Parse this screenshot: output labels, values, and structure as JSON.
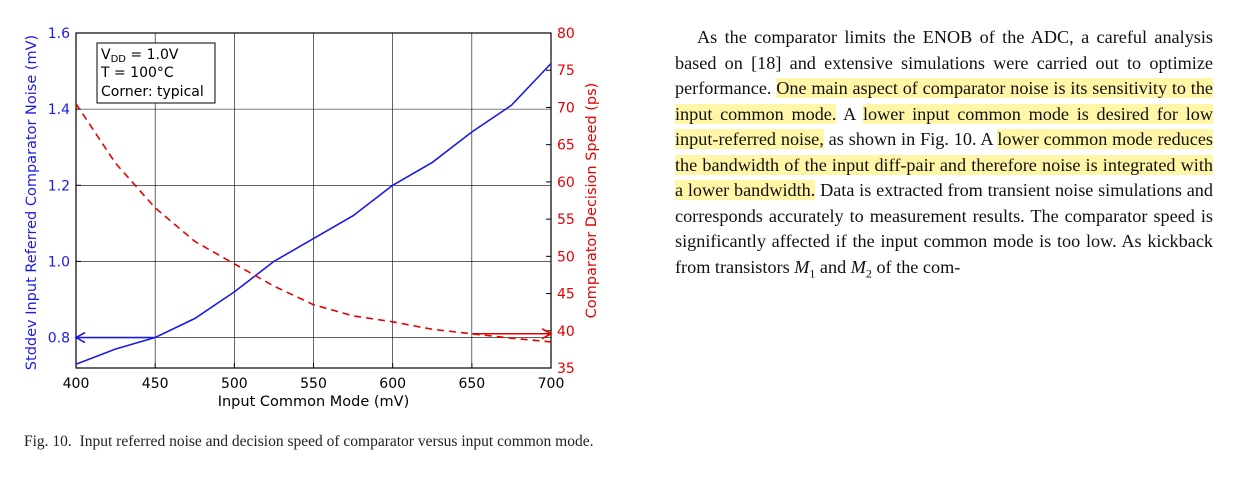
{
  "chart_data": {
    "type": "line",
    "xlabel": "Input Common Mode (mV)",
    "ylabel_left": "Stddev Input Referred Comparator Noise (mV)",
    "ylabel_right": "Comparator Decision Speed (ps)",
    "xlim": [
      400,
      700
    ],
    "ylim_left": [
      0.72,
      1.6
    ],
    "ylim_right": [
      35,
      80
    ],
    "x_ticks": [
      "400",
      "450",
      "500",
      "550",
      "600",
      "650",
      "700"
    ],
    "y_left_ticks": [
      "0.8",
      "1.0",
      "1.2",
      "1.4",
      "1.6"
    ],
    "y_right_ticks": [
      "35",
      "40",
      "45",
      "50",
      "55",
      "60",
      "65",
      "70",
      "75",
      "80"
    ],
    "grid": true,
    "annotation": {
      "line1_main": "V",
      "line1_sub": "DD",
      "line1_rest": " = 1.0V",
      "line2": "T = 100°C",
      "line3": "Corner: typical"
    },
    "series": [
      {
        "axis": "left",
        "color": "#1a1ae6",
        "style": "solid",
        "x": [
          400,
          425,
          450,
          475,
          500,
          525,
          550,
          575,
          600,
          625,
          650,
          675,
          700
        ],
        "y": [
          0.73,
          0.77,
          0.8,
          0.85,
          0.92,
          1.0,
          1.06,
          1.12,
          1.2,
          1.26,
          1.34,
          1.41,
          1.52
        ]
      },
      {
        "axis": "right",
        "color": "#e60000",
        "style": "dashed",
        "x": [
          400,
          425,
          450,
          475,
          500,
          525,
          550,
          575,
          600,
          625,
          650,
          675,
          700
        ],
        "y": [
          70.5,
          62.5,
          56.5,
          52.0,
          49.0,
          46.0,
          43.5,
          42.0,
          41.2,
          40.2,
          39.6,
          39.0,
          38.5
        ]
      }
    ],
    "arrows": [
      {
        "axis": "left",
        "direction": "left",
        "from_x": 450,
        "to_x": 400,
        "y": 0.8,
        "color": "#1a1ae6"
      },
      {
        "axis": "right",
        "direction": "right",
        "from_x": 650,
        "to_x": 700,
        "y": 39.6,
        "color": "#e60000"
      }
    ]
  },
  "caption": {
    "label": "Fig. 10.",
    "text": "Input referred noise and decision speed of comparator versus input common mode."
  },
  "body": {
    "s1": "As the comparator limits the ENOB of the ADC, a careful analysis based on [18] and extensive simulations were carried out to optimize performance. ",
    "h1": "One main aspect of comparator noise is its sensitivity to the input common mode.",
    "s2": " A ",
    "h2": "lower input common mode is desired for low input-referred noise,",
    "s3": " as shown in Fig. 10. A ",
    "h3": "lower common mode reduces the bandwidth of the input diff-pair and therefore noise is integrated with a lower bandwidth.",
    "s4": " Data is extracted from transient noise simulations and corresponds accurately to measurement results. The comparator speed is significantly affected if the input common mode is too low. As kickback from transistors ",
    "m1": "M",
    "m1sub": "1",
    "s5": " and ",
    "m2": "M",
    "m2sub": "2",
    "s6": " of the com-"
  }
}
